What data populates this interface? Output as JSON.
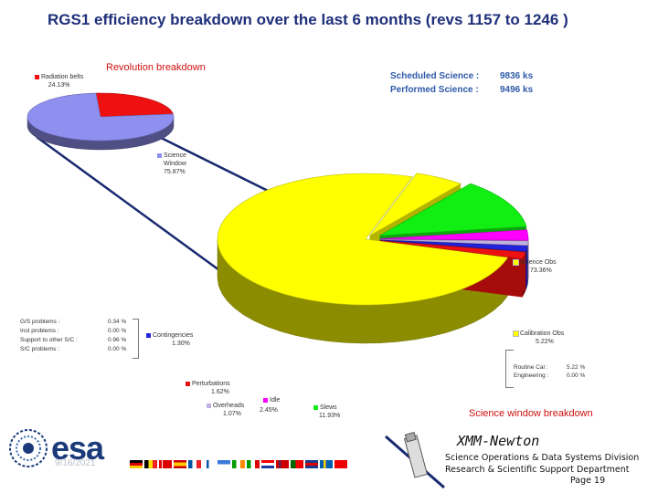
{
  "title": "RGS1 efficiency breakdown over the last 6 months (revs  1157 to 1246 )",
  "science": {
    "scheduled_label": "Scheduled Science :",
    "scheduled_value": "9836 ks",
    "performed_label": "Performed Science :",
    "performed_value": "9496 ks"
  },
  "chart_data": [
    {
      "type": "pie",
      "title": "Revolution breakdown",
      "slices": [
        {
          "name": "Radiation belts",
          "line2": "",
          "value": 24.13,
          "label_value": "24.13%",
          "color": "#ee1111"
        },
        {
          "name": "Science",
          "line2": "Window",
          "value": 75.87,
          "label_value": "75.87%",
          "color": "#8f8ff0"
        }
      ]
    },
    {
      "type": "pie",
      "title": "Science window breakdown",
      "slices": [
        {
          "name": "Science Obs",
          "value": 73.36,
          "label_value": "73.36%",
          "color": "#ffff00"
        },
        {
          "name": "Calibration Obs",
          "value": 5.22,
          "label_value": "5.22%",
          "color": "#ffff00"
        },
        {
          "name": "Slews",
          "value": 11.93,
          "label_value": "11.93%",
          "color": "#11ee11"
        },
        {
          "name": "Idle",
          "value": 2.45,
          "label_value": "2.45%",
          "color": "#ff00ff"
        },
        {
          "name": "Overheads",
          "value": 1.07,
          "label_value": "1.07%",
          "color": "#c0b0e0"
        },
        {
          "name": "Contingencies",
          "value": 1.3,
          "label_value": "1.30%",
          "color": "#2222dd"
        },
        {
          "name": "Perturbations",
          "value": 1.62,
          "label_value": "1.62%",
          "color": "#ee1111"
        }
      ],
      "contingency_details": [
        {
          "name": "G/S problems :",
          "value": "0.34 %"
        },
        {
          "name": "Inst problems :",
          "value": "0.00 %"
        },
        {
          "name": "Support to other S/C :",
          "value": "0.96 %"
        },
        {
          "name": "S/C problems :",
          "value": "0.00 %"
        }
      ],
      "calibration_details": [
        {
          "name": "Routine Cal :",
          "value": "5.22 %"
        },
        {
          "name": "Engineering :",
          "value": "0.00 %"
        }
      ]
    }
  ],
  "colors": {
    "title": "#1f2f7a",
    "science_text": "#2e5aa8",
    "red_title": "#d01010"
  },
  "footer": {
    "org": "esa",
    "date": "9/16/2021",
    "mission": "XMM-Newton",
    "line1": "Science Operations & Data Systems Division",
    "line2": "Research & Scientific Support Department",
    "page": "Page 19"
  }
}
